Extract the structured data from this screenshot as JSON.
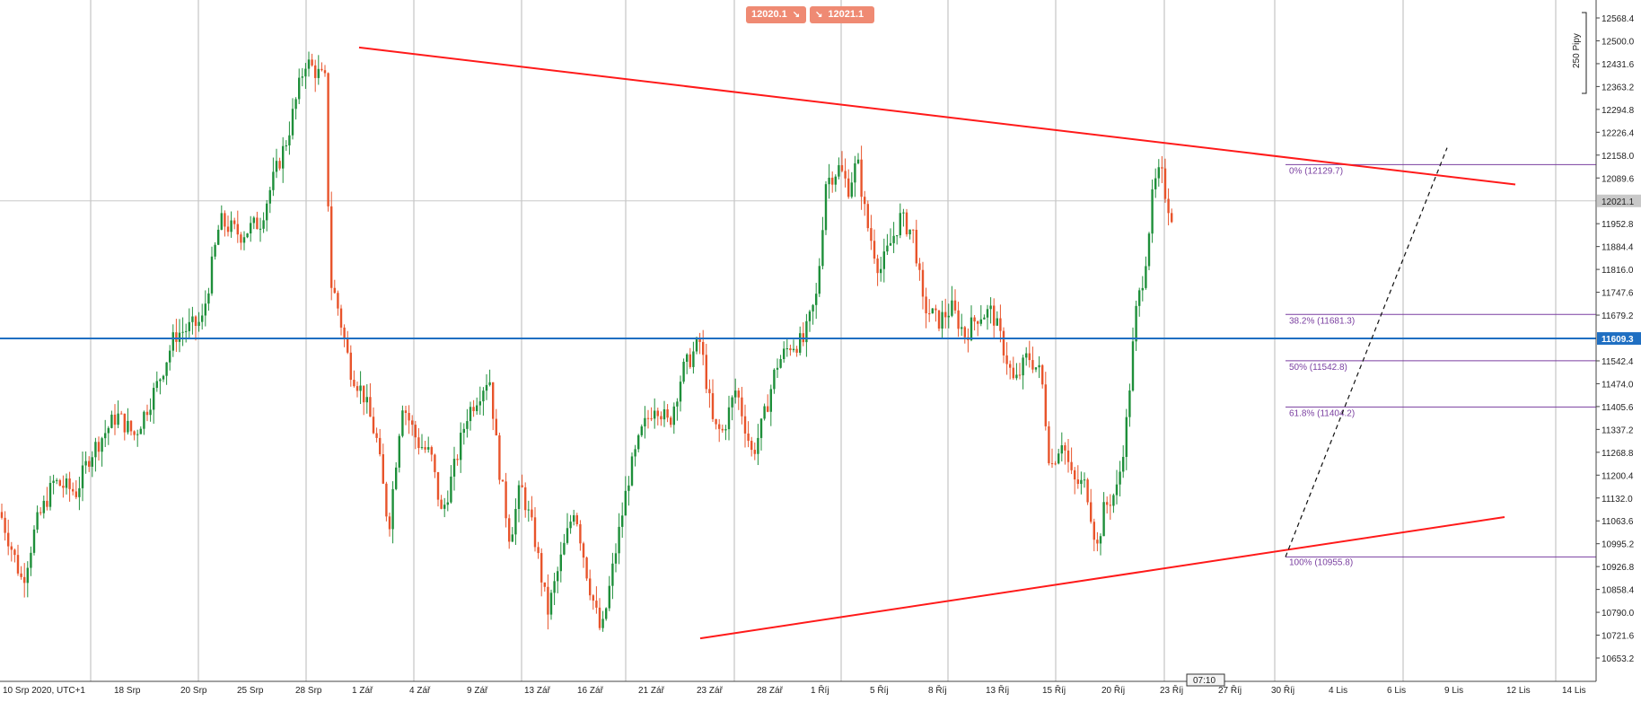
{
  "trade_panel": {
    "sell_price": "12020.1",
    "sell_arrow": "↘",
    "buy_arrow": "↘",
    "buy_price": "12021.1"
  },
  "pips_label": "250 Pipy",
  "time_marker": "07:10",
  "colors": {
    "bull": "#1e8f3a",
    "bear": "#e8542b",
    "trendline": "#ff1a1a",
    "horizontal": "#1f6fc2",
    "fib": "#7a3fa0",
    "current_price_tag": "#c8c8c8",
    "level_tag": "#1f6fc2"
  },
  "chart_data": {
    "type": "candlestick",
    "instrument_timeframe_label": "10 Srp 2020, UTC+1",
    "x_tick_labels": [
      "10 Srp 2020, UTC+1",
      "18 Srp",
      "20 Srp",
      "25 Srp",
      "28 Srp",
      "1 Zář",
      "4 Zář",
      "9 Zář",
      "13 Zář",
      "16 Zář",
      "21 Zář",
      "23 Zář",
      "28 Zář",
      "1 Říj",
      "5 Říj",
      "8 Říj",
      "13 Říj",
      "15 Říj",
      "20 Říj",
      "23 Říj",
      "27 Říj",
      "30 Říj",
      "4 Lis",
      "6 Lis",
      "9 Lis",
      "12 Lis",
      "14 Lis"
    ],
    "y_tick_labels": [
      "12568.4",
      "12500.0",
      "12431.6",
      "12363.2",
      "12294.8",
      "12226.4",
      "12158.0",
      "12089.6",
      "11952.8",
      "11884.4",
      "11816.0",
      "11747.6",
      "11679.2",
      "11542.4",
      "11474.0",
      "11405.6",
      "11337.2",
      "11268.8",
      "11200.4",
      "11132.0",
      "11063.6",
      "10995.2",
      "10926.8",
      "10858.4",
      "10790.0",
      "10721.6",
      "10653.2"
    ],
    "y_range": [
      10625,
      12600
    ],
    "current_price": 12021.1,
    "current_price_label": "12021.1",
    "horizontal_level": 11609.3,
    "horizontal_level_label": "11609.3",
    "fibonacci": [
      {
        "label": "0% (12129.7)",
        "price": 12129.7
      },
      {
        "label": "38.2% (11681.3)",
        "price": 11681.3
      },
      {
        "label": "50% (11542.8)",
        "price": 11542.8
      },
      {
        "label": "61.8% (11404.2)",
        "price": 11404.2
      },
      {
        "label": "100% (10955.8)",
        "price": 10955.8
      }
    ],
    "trendlines": [
      {
        "name": "upper",
        "from": {
          "x": "1 Zář",
          "y": 12480
        },
        "to": {
          "x": "12 Lis",
          "y": 12070
        }
      },
      {
        "name": "lower",
        "from": {
          "x": "23 Zář",
          "y": 10712
        },
        "to": {
          "x": "12 Lis",
          "y": 11075
        }
      },
      {
        "name": "dashed",
        "from": {
          "x": "30 Říj",
          "y": 10955.8
        },
        "to": {
          "x": "9 Lis",
          "y": 12180
        }
      }
    ],
    "price_path": [
      [
        0,
        11090
      ],
      [
        25,
        10880
      ],
      [
        40,
        11050
      ],
      [
        60,
        11180
      ],
      [
        85,
        11150
      ],
      [
        100,
        11260
      ],
      [
        130,
        11380
      ],
      [
        150,
        11320
      ],
      [
        175,
        11470
      ],
      [
        195,
        11620
      ],
      [
        225,
        11660
      ],
      [
        245,
        11960
      ],
      [
        268,
        11920
      ],
      [
        290,
        11960
      ],
      [
        305,
        12090
      ],
      [
        320,
        12210
      ],
      [
        340,
        12440
      ],
      [
        355,
        12400
      ],
      [
        362,
        12380
      ],
      [
        368,
        11780
      ],
      [
        375,
        11720
      ],
      [
        390,
        11520
      ],
      [
        405,
        11440
      ],
      [
        420,
        11300
      ],
      [
        433,
        11040
      ],
      [
        448,
        11420
      ],
      [
        465,
        11300
      ],
      [
        480,
        11260
      ],
      [
        492,
        11080
      ],
      [
        505,
        11210
      ],
      [
        520,
        11380
      ],
      [
        545,
        11500
      ],
      [
        555,
        11240
      ],
      [
        568,
        11010
      ],
      [
        580,
        11170
      ],
      [
        595,
        11020
      ],
      [
        610,
        10790
      ],
      [
        625,
        10950
      ],
      [
        640,
        11110
      ],
      [
        655,
        10890
      ],
      [
        670,
        10720
      ],
      [
        685,
        10960
      ],
      [
        700,
        11190
      ],
      [
        715,
        11330
      ],
      [
        730,
        11420
      ],
      [
        745,
        11350
      ],
      [
        760,
        11510
      ],
      [
        780,
        11600
      ],
      [
        795,
        11340
      ],
      [
        805,
        11330
      ],
      [
        820,
        11460
      ],
      [
        838,
        11260
      ],
      [
        850,
        11360
      ],
      [
        865,
        11530
      ],
      [
        880,
        11590
      ],
      [
        895,
        11600
      ],
      [
        910,
        11740
      ],
      [
        920,
        12080
      ],
      [
        935,
        12120
      ],
      [
        945,
        12060
      ],
      [
        955,
        12140
      ],
      [
        965,
        11960
      ],
      [
        980,
        11810
      ],
      [
        990,
        11880
      ],
      [
        1003,
        11970
      ],
      [
        1018,
        11920
      ],
      [
        1028,
        11710
      ],
      [
        1045,
        11660
      ],
      [
        1060,
        11700
      ],
      [
        1075,
        11620
      ],
      [
        1090,
        11680
      ],
      [
        1105,
        11690
      ],
      [
        1118,
        11580
      ],
      [
        1130,
        11470
      ],
      [
        1145,
        11560
      ],
      [
        1160,
        11500
      ],
      [
        1170,
        11220
      ],
      [
        1183,
        11310
      ],
      [
        1195,
        11180
      ],
      [
        1210,
        11170
      ],
      [
        1222,
        10980
      ],
      [
        1230,
        11100
      ],
      [
        1245,
        11160
      ],
      [
        1255,
        11360
      ],
      [
        1265,
        11680
      ],
      [
        1275,
        11820
      ],
      [
        1285,
        12060
      ],
      [
        1293,
        12110
      ],
      [
        1300,
        12020
      ],
      [
        1308,
        11960
      ]
    ]
  }
}
